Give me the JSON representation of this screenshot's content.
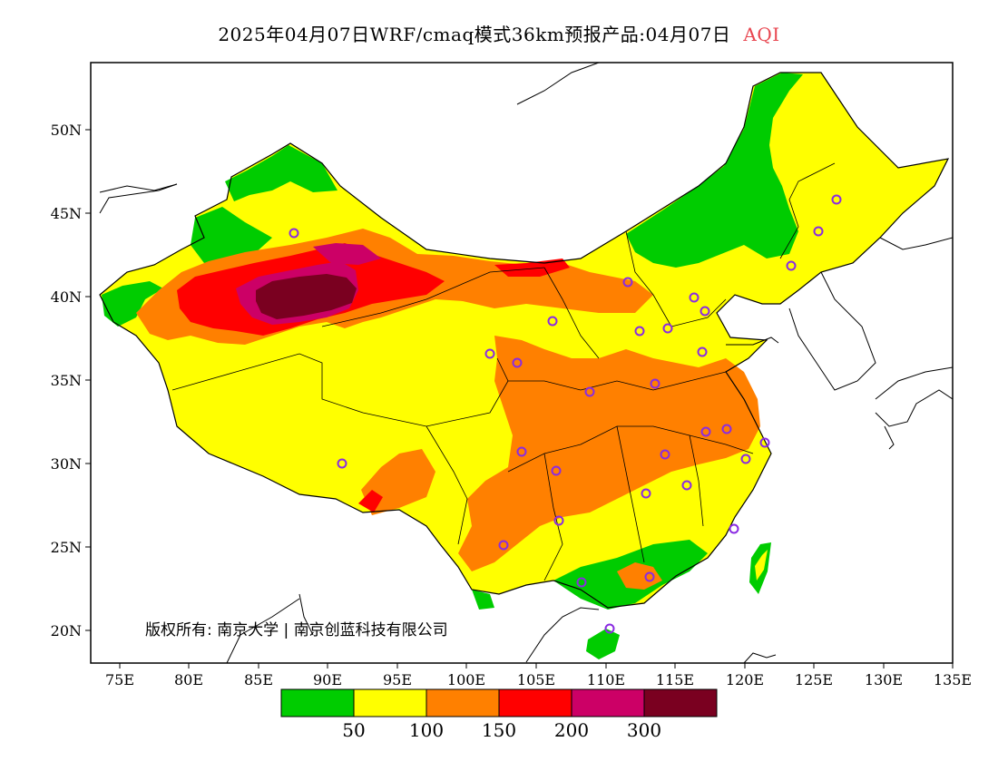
{
  "title": {
    "main": "2025年04月07日WRF/cmaq模式36km预报产品:04月07日",
    "variable": "AQI"
  },
  "axes": {
    "lon_ticks": [
      "75E",
      "80E",
      "85E",
      "90E",
      "95E",
      "100E",
      "105E",
      "110E",
      "115E",
      "120E",
      "125E",
      "130E",
      "135E"
    ],
    "lat_ticks": [
      "50N",
      "45N",
      "40N",
      "35N",
      "30N",
      "25N",
      "20N"
    ]
  },
  "copyright": {
    "label": "版权所有:",
    "org1": "南京大学",
    "org2": "南京创蓝科技有限公司"
  },
  "legend": {
    "colors": [
      "#00cc00",
      "#ffff00",
      "#ff8000",
      "#ff0000",
      "#cc0066",
      "#7a0020"
    ],
    "labels": [
      "50",
      "100",
      "150",
      "200",
      "300"
    ]
  },
  "colors": {
    "good": "#00cc00",
    "moderate": "#ffff00",
    "sensitive": "#ff8000",
    "unhealthy": "#ff0000",
    "very_unhealthy": "#cc0066",
    "hazardous": "#7a0020",
    "city_marker": "#8a2be2"
  }
}
